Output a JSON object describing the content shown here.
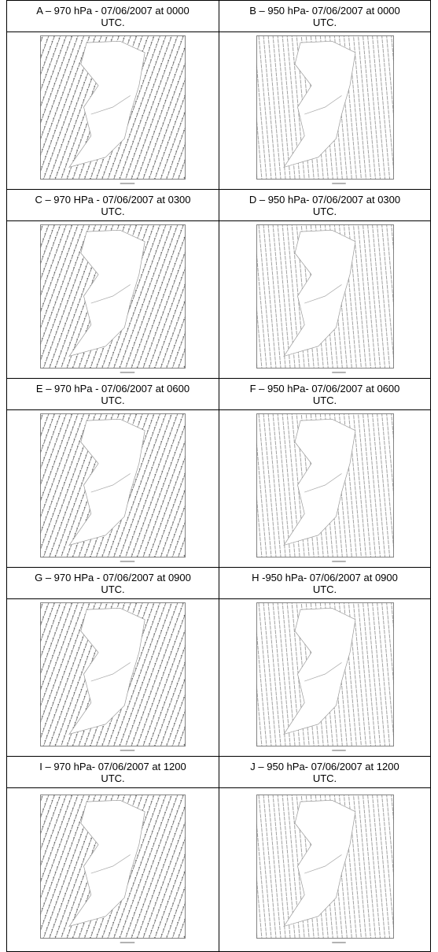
{
  "panels": [
    {
      "caption": "A – 970 hPa - 07/06/2007 at 0000 UTC."
    },
    {
      "caption": "B – 950 hPa- 07/06/2007 at 0000 UTC."
    },
    {
      "caption": "C – 970 HPa - 07/06/2007 at 0300 UTC."
    },
    {
      "caption": "D – 950 hPa- 07/06/2007 at 0300 UTC."
    },
    {
      "caption": "E – 970 hPa - 07/06/2007 at 0600 UTC."
    },
    {
      "caption": "F – 950 hPa- 07/06/2007 at 0600 UTC."
    },
    {
      "caption": "G – 970 HPa - 07/06/2007 at 0900 UTC."
    },
    {
      "caption": "H -950 hPa- 07/06/2007 at 0900 UTC."
    },
    {
      "caption": "I – 970 hPa- 07/06/2007 at 1200 UTC."
    },
    {
      "caption": "J – 950 hPa- 07/06/2007 at 1200 UTC."
    }
  ]
}
